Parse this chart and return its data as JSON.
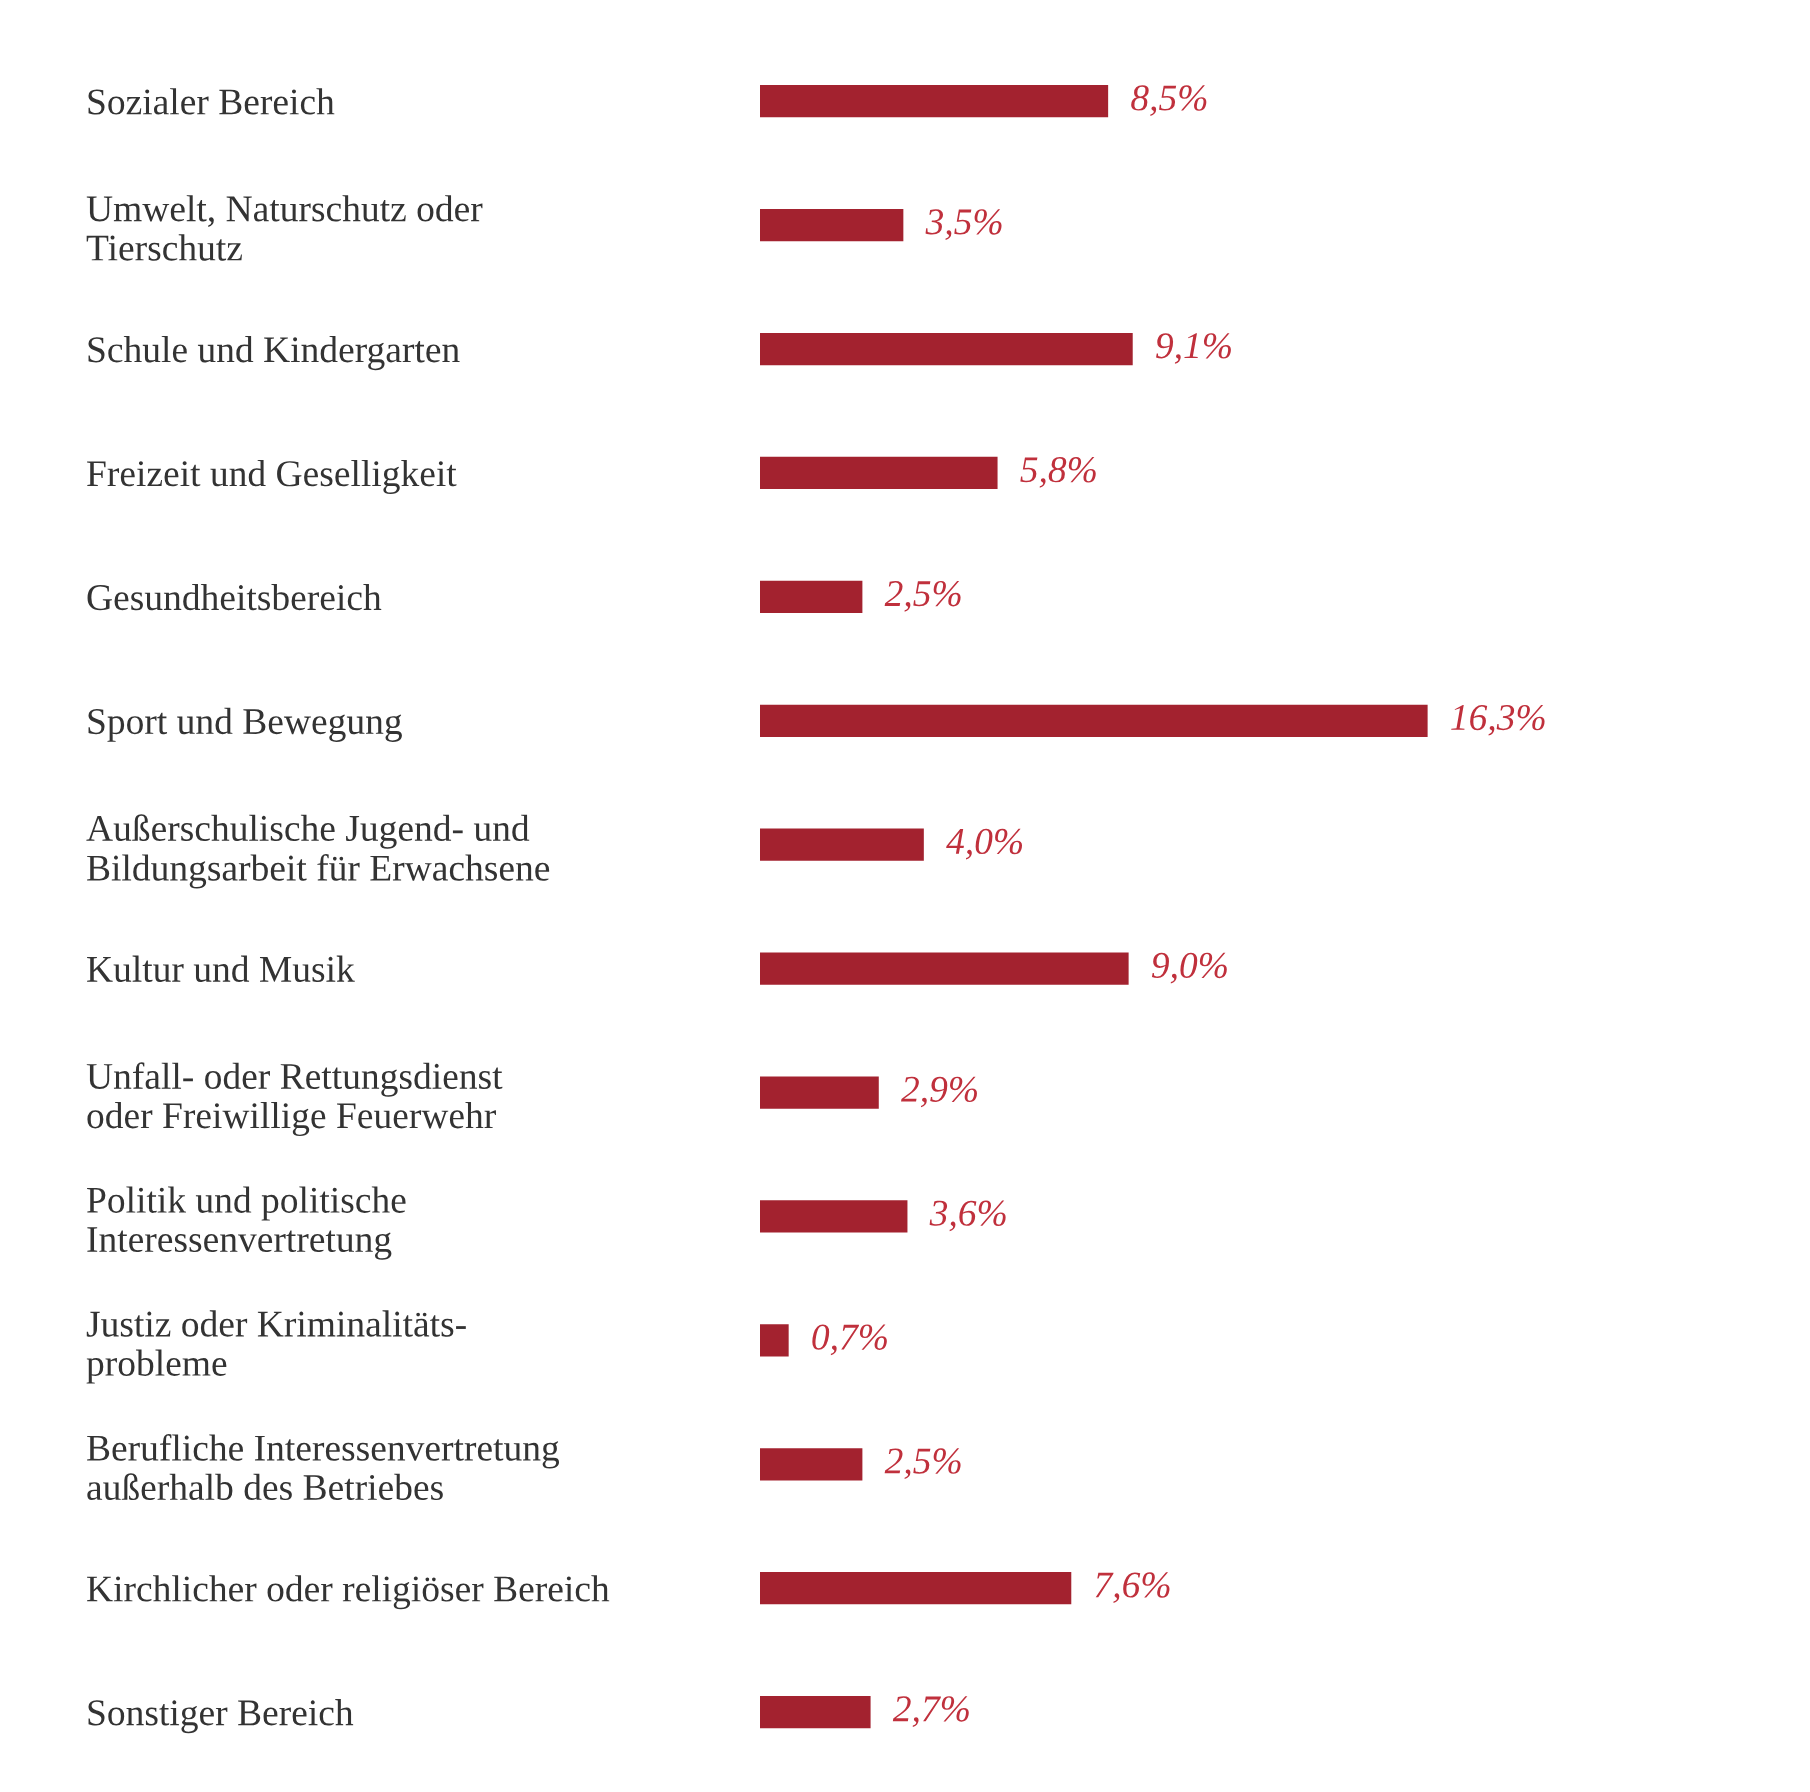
{
  "chart_data": {
    "type": "bar",
    "orientation": "horizontal",
    "categories": [
      "Sozialer Bereich",
      "Umwelt, Naturschutz oder\nTierschutz",
      "Schule und Kindergarten",
      "Freizeit und Geselligkeit",
      "Gesundheitsbereich",
      "Sport und Bewegung",
      "Außerschulische Jugend- und\nBildungsarbeit für Erwachsene",
      "Kultur und Musik",
      "Unfall- oder Rettungsdienst\noder Freiwillige Feuerwehr",
      "Politik und politische\nInteressenvertretung",
      "Justiz oder Kriminalitäts-\nprobleme",
      "Berufliche Interessenvertretung\naußerhalb des Betriebes",
      "Kirchlicher oder religiöser Bereich",
      "Sonstiger Bereich"
    ],
    "values": [
      8.5,
      3.5,
      9.1,
      5.8,
      2.5,
      16.3,
      4.0,
      9.0,
      2.9,
      3.6,
      0.7,
      2.5,
      7.6,
      2.7
    ],
    "value_labels": [
      "8,5%",
      "3,5%",
      "9,1%",
      "5,8%",
      "2,5%",
      "16,3%",
      "4,0%",
      "9,0%",
      "2,9%",
      "3,6%",
      "0,7%",
      "2,5%",
      "7,6%",
      "2,7%"
    ],
    "color": "#a3222f",
    "grid": false,
    "legend": false,
    "tick_labels": "y"
  }
}
